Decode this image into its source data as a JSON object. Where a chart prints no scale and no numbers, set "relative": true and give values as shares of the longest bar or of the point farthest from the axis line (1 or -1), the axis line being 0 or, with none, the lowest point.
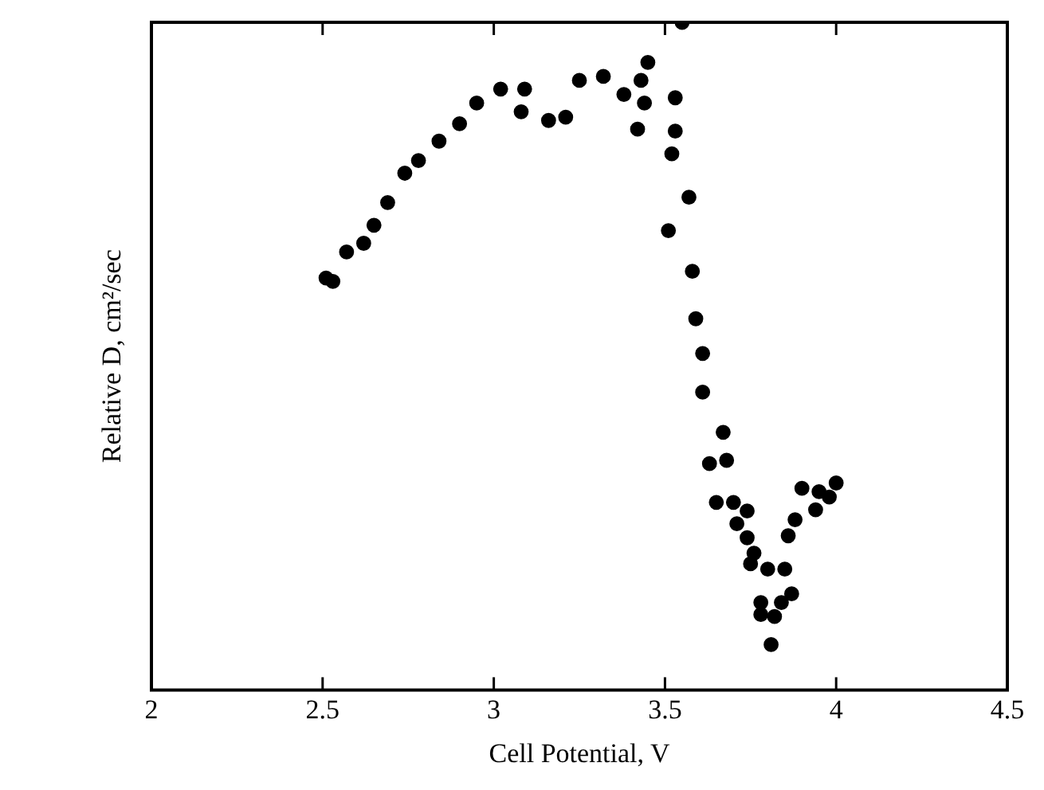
{
  "chart_data": {
    "type": "scatter",
    "xlabel": "Cell Potential, V",
    "ylabel": "Relative D, cm²/sec",
    "relative": true,
    "marker": "circle",
    "xlim": [
      2,
      4.5
    ],
    "xticks": [
      2,
      2.5,
      3,
      3.5,
      4,
      4.5
    ],
    "grid": false,
    "legend": false,
    "series": [
      {
        "color": "#000000",
        "x": [
          2.51,
          2.53,
          2.57,
          2.62,
          2.65,
          2.69,
          2.74,
          2.78,
          2.84,
          2.9,
          2.95,
          3.02,
          3.08,
          3.09,
          3.16,
          3.21,
          3.25,
          3.32,
          3.38,
          3.42,
          3.43,
          3.45,
          3.44,
          3.55,
          3.53,
          3.53,
          3.52,
          3.57,
          3.51,
          3.58,
          3.59,
          3.61,
          3.61,
          3.67,
          3.63,
          3.68,
          3.65,
          3.7,
          3.74,
          3.71,
          3.74,
          3.76,
          3.75,
          3.8,
          3.85,
          3.78,
          3.78,
          3.82,
          3.84,
          3.87,
          3.81,
          3.86,
          3.88,
          3.9,
          3.94,
          3.95,
          4.0,
          3.98
        ],
        "values": [
          0.617,
          0.612,
          0.656,
          0.669,
          0.696,
          0.73,
          0.774,
          0.793,
          0.822,
          0.848,
          0.879,
          0.9,
          0.866,
          0.9,
          0.853,
          0.858,
          0.913,
          0.919,
          0.892,
          0.84,
          0.913,
          0.94,
          0.879,
          1,
          0.887,
          0.837,
          0.803,
          0.738,
          0.688,
          0.627,
          0.556,
          0.504,
          0.446,
          0.386,
          0.339,
          0.344,
          0.281,
          0.281,
          0.268,
          0.249,
          0.228,
          0.205,
          0.189,
          0.181,
          0.181,
          0.131,
          0.113,
          0.11,
          0.131,
          0.144,
          0.068,
          0.231,
          0.255,
          0.302,
          0.27,
          0.297,
          0.31,
          0.289
        ]
      }
    ]
  }
}
